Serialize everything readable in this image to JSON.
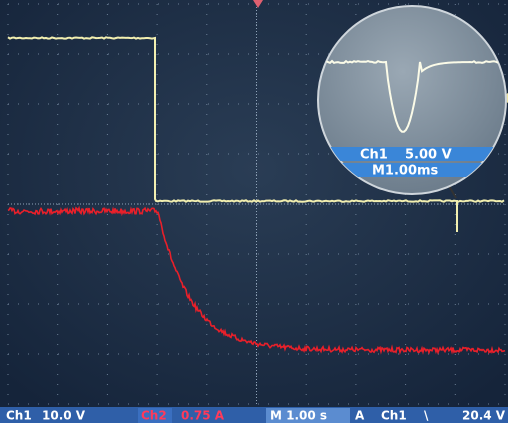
{
  "status_bar": {
    "ch1_label": "Ch1",
    "ch1_scale": "10.0 V",
    "ch2_label": "Ch2",
    "ch2_scale": "0.75 A",
    "timebase": "M 1.00 s",
    "trigger_mode": "A",
    "trigger_source": "Ch1",
    "trigger_slope": "\\",
    "trigger_level": "20.4 V"
  },
  "zoom_inset": {
    "channel": "Ch1",
    "scale": "5.00 V",
    "timebase": "M1.00ms"
  }
}
